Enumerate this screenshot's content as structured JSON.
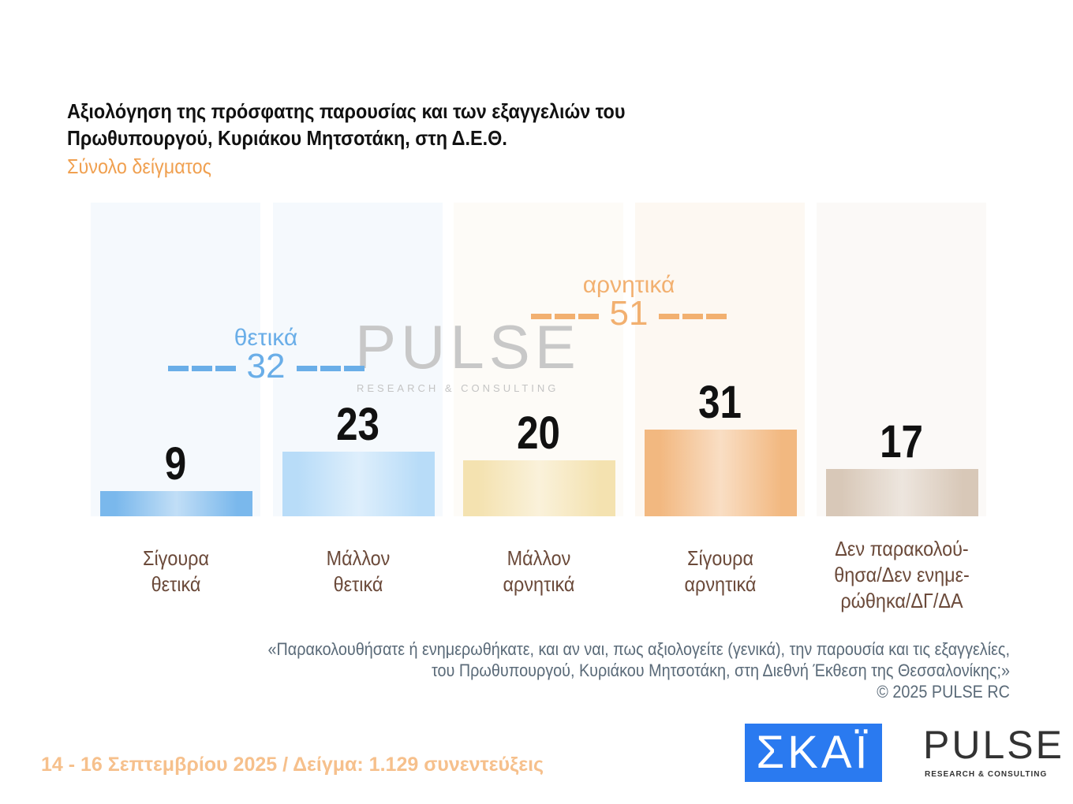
{
  "title_line1": "Αξιολόγηση της πρόσφατης παρουσίας και των εξαγγελιών του",
  "title_line2": "Πρωθυπουργού, Κυριάκου Μητσοτάκη, στη Δ.Ε.Θ.",
  "subtitle": "Σύνολο δείγματος",
  "chart_data": {
    "type": "bar",
    "categories": [
      "Σίγουρα θετικά",
      "Μάλλον θετικά",
      "Μάλλον αρνητικά",
      "Σίγουρα αρνητικά",
      "Δεν παρακολού-θησα/Δεν ενημε-ρώθηκα/ΔΓ/ΔΑ"
    ],
    "category_lines": [
      [
        "Σίγουρα",
        "θετικά"
      ],
      [
        "Μάλλον",
        "θετικά"
      ],
      [
        "Μάλλον",
        "αρνητικά"
      ],
      [
        "Σίγουρα",
        "αρνητικά"
      ],
      [
        "Δεν παρακολού-",
        "θησα/Δεν ενημε-",
        "ρώθηκα/ΔΓ/ΔΑ"
      ]
    ],
    "values": [
      9,
      23,
      20,
      31,
      17
    ],
    "value_labels": [
      "9",
      "23",
      "20",
      "31",
      "17"
    ],
    "colors": [
      "#7ab8ec",
      "#b8dcf8",
      "#f4e2b0",
      "#f2b880",
      "#d8c8b8"
    ],
    "ylim": [
      0,
      100
    ],
    "groups": [
      {
        "label": "θετικά",
        "value": "32",
        "color": "#6aaee8"
      },
      {
        "label": "αρνητικά",
        "value": "51",
        "color": "#f2b070"
      }
    ]
  },
  "watermark": {
    "text": "PULSE",
    "sub": "RESEARCH & CONSULTING"
  },
  "note_line1": "«Παρακολουθήσατε ή ενημερωθήκατε, και αν ναι, πως αξιολογείτε (γενικά), την παρουσία και τις εξαγγελίες,",
  "note_line2": "του Πρωθυπουργού, Κυριάκου Μητσοτάκη, στη Διεθνή Έκθεση της Θεσσαλονίκης;»",
  "copyright": "©  2025  PULSE RC",
  "footer": "14 - 16 Σεπτεμβρίου 2025  /  Δείγμα:  1.129 συνεντεύξεις",
  "logos": {
    "skai": "ΣΚΑΪ",
    "pulse": "PULSE",
    "pulse_sub": "RESEARCH & CONSULTING"
  }
}
